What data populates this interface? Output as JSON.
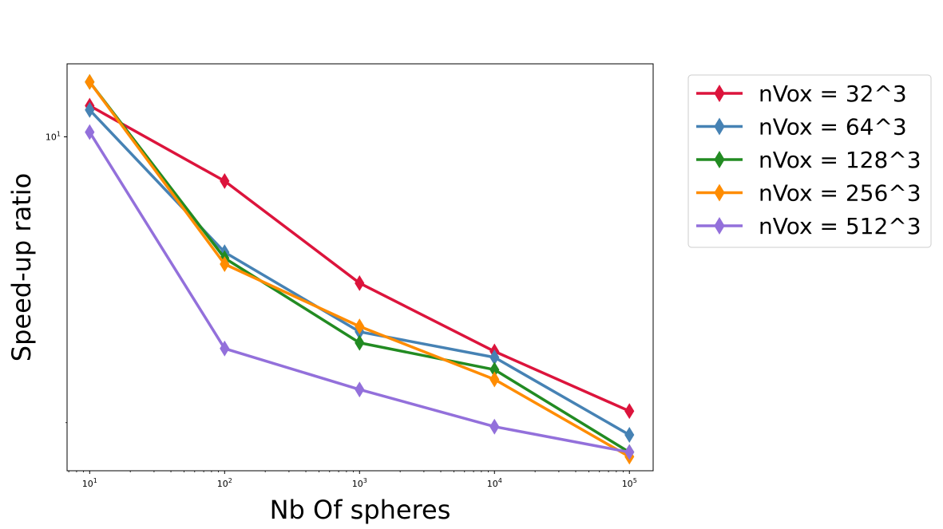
{
  "chart_data": {
    "type": "line",
    "xlabel": "Nb Of spheres",
    "ylabel": "Speed-up ratio",
    "xscale": "log",
    "yscale": "log",
    "x": [
      10,
      100,
      1000,
      10000,
      100000
    ],
    "xlim": [
      6.8,
      150000
    ],
    "ylim": [
      2.45,
      13.6
    ],
    "x_ticks": [
      10,
      100,
      1000,
      10000,
      100000
    ],
    "x_tick_labels": [
      {
        "base": "10",
        "exp": "1"
      },
      {
        "base": "10",
        "exp": "2"
      },
      {
        "base": "10",
        "exp": "3"
      },
      {
        "base": "10",
        "exp": "4"
      },
      {
        "base": "10",
        "exp": "5"
      }
    ],
    "y_ticks": [
      10
    ],
    "y_tick_labels": [
      {
        "base": "10",
        "exp": "1"
      }
    ],
    "y_minor_visible": [
      3
    ],
    "marker": "thin-diamond",
    "grid": false,
    "legend_position": "outside-right",
    "series": [
      {
        "name": "nVox = 32^3",
        "color": "#dc143c",
        "values": [
          11.4,
          8.3,
          5.4,
          4.05,
          3.15
        ]
      },
      {
        "name": "nVox = 64^3",
        "color": "#4682b4",
        "values": [
          11.2,
          6.15,
          4.4,
          3.95,
          2.85
        ]
      },
      {
        "name": "nVox = 128^3",
        "color": "#228b22",
        "values": [
          12.6,
          6.0,
          4.2,
          3.75,
          2.65
        ]
      },
      {
        "name": "nVox = 256^3",
        "color": "#ff8c00",
        "values": [
          12.6,
          5.85,
          4.5,
          3.6,
          2.6
        ]
      },
      {
        "name": "nVox = 512^3",
        "color": "#9370db",
        "values": [
          10.2,
          4.1,
          3.45,
          2.95,
          2.65
        ]
      }
    ]
  }
}
